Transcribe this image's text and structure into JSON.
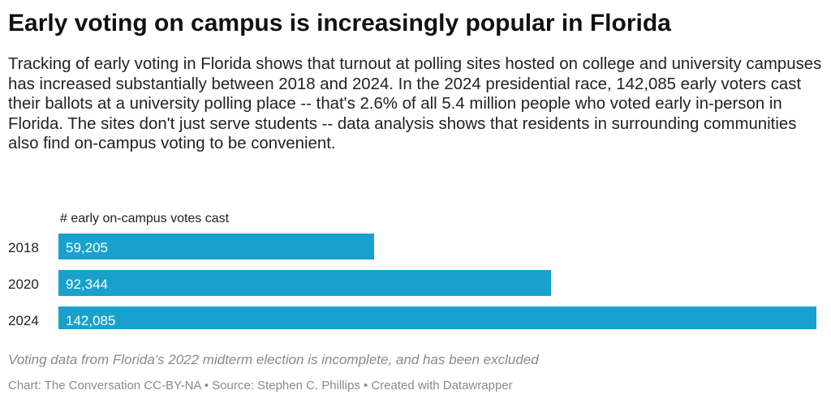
{
  "title": "Early voting on campus is increasingly popular in Florida",
  "description": "Tracking of early voting in Florida shows that turnout at polling sites hosted on college and university campuses has increased substantially between 2018 and 2024. In the 2024 presidential race, 142,085 early voters cast their ballots at a university polling place -- that's 2.6% of all 5.4 million people who voted early in-person in Florida. The sites don't just serve students -- data analysis shows that residents in surrounding communities also find on-campus voting to be convenient.",
  "chart_data": {
    "type": "bar",
    "orientation": "horizontal",
    "column_label": "# early on-campus votes cast",
    "categories": [
      "2018",
      "2020",
      "2024"
    ],
    "values": [
      59205,
      92344,
      142085
    ],
    "value_labels": [
      "59,205",
      "92,344",
      "142,085"
    ],
    "xlim": [
      0,
      142085
    ],
    "bar_color": "#18a1cd",
    "label_color": "#ffffff",
    "grid": false,
    "legend": "none"
  },
  "caption": "Voting data from Florida's 2022 midterm election is incomplete, and has been excluded",
  "footer": "Chart: The Conversation CC-BY-NA • Source: Stephen C. Phillips • Created with Datawrapper"
}
